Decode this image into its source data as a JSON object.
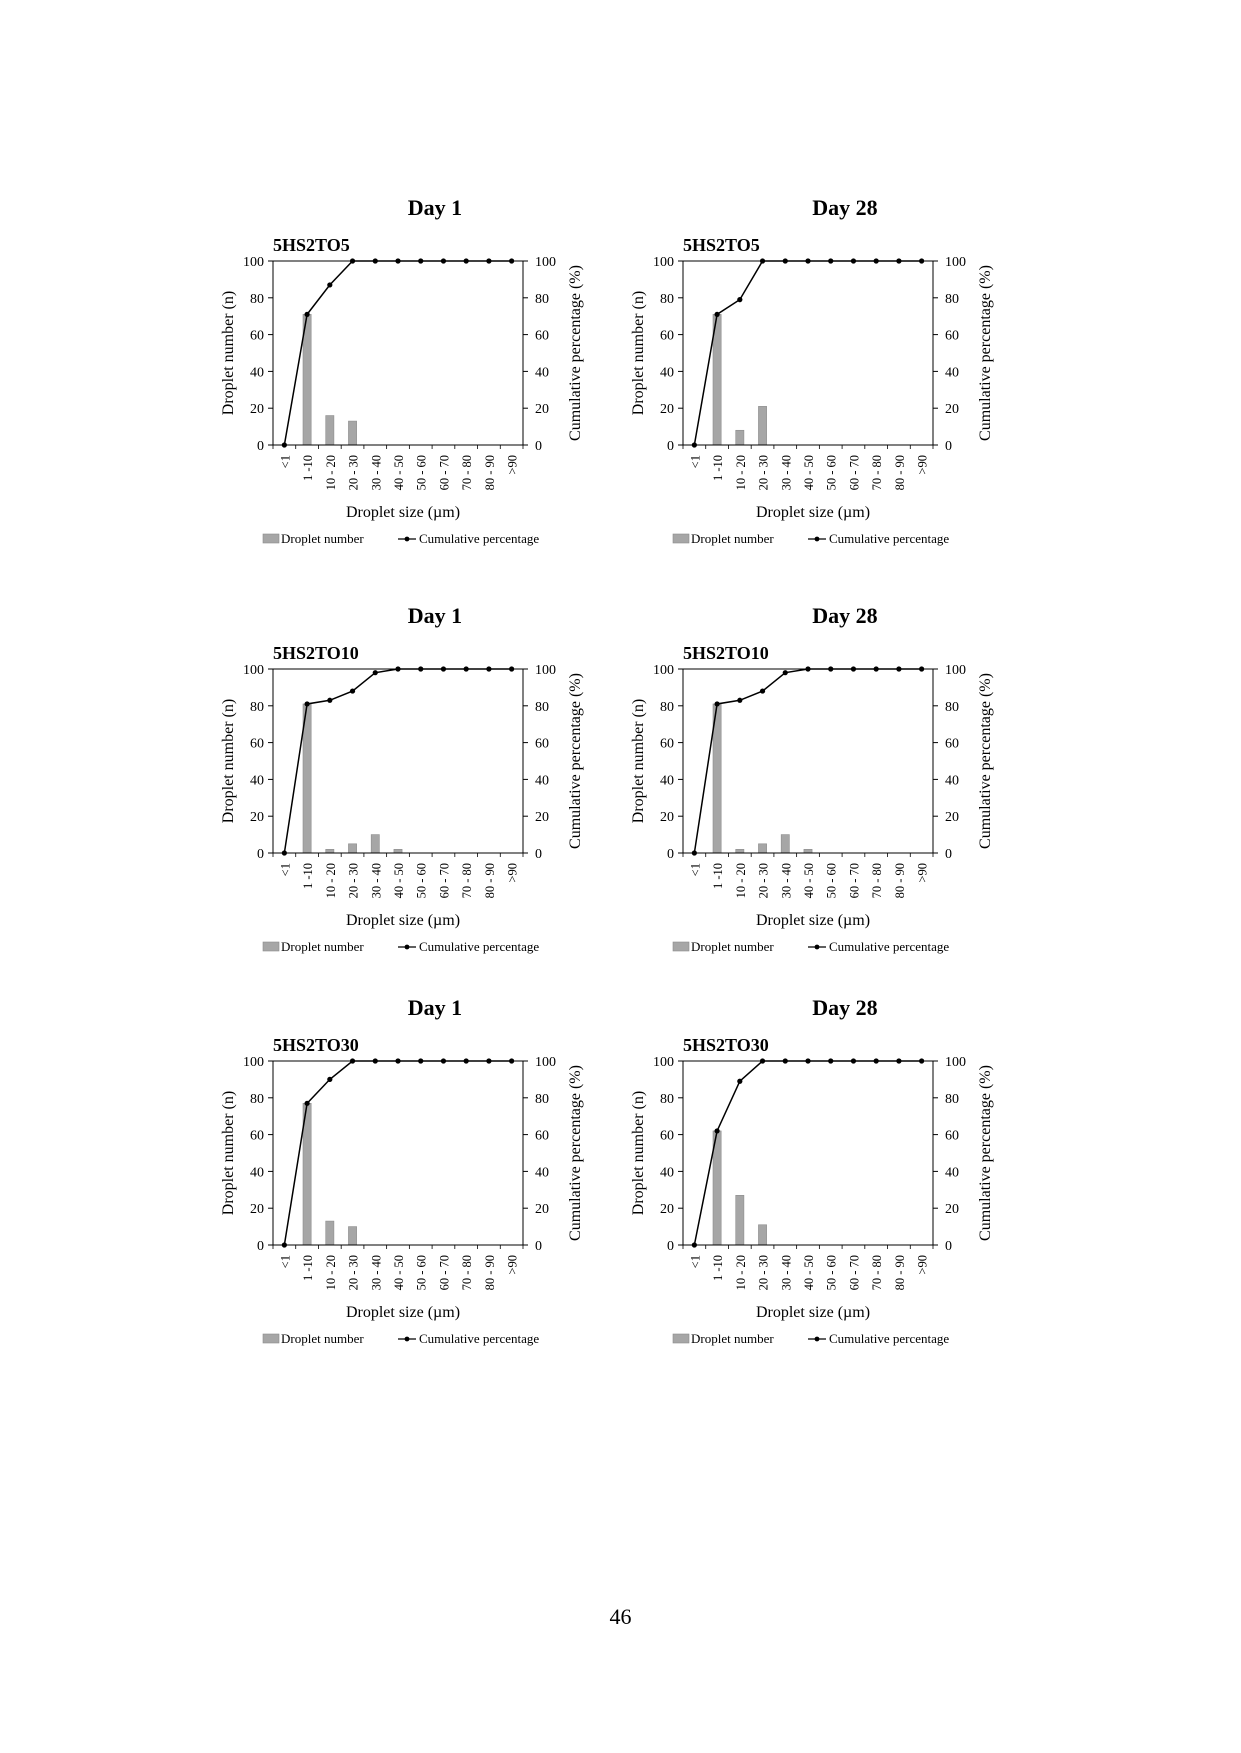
{
  "page_number": "46",
  "legend": {
    "bar_label": "Droplet number",
    "line_label": "Cumulative percentage"
  },
  "chart_data": [
    {
      "type": "bar",
      "day_title": "Day 1",
      "sample": "5HS2TO5",
      "categories": [
        "<1",
        "1 -10",
        "10 - 20",
        "20 - 30",
        "30 - 40",
        "40 - 50",
        "50 - 60",
        "60 - 70",
        "70 - 80",
        "80 - 90",
        ">90"
      ],
      "xlabel": "Droplet size (µm)",
      "ylabel": "Droplet number (n)",
      "y2label": "Cumulative percentage (%)",
      "ylim": [
        0,
        100
      ],
      "y2lim": [
        0,
        100
      ],
      "yticks": [
        0,
        20,
        40,
        60,
        80,
        100
      ],
      "series": [
        {
          "name": "Droplet number",
          "type": "bar",
          "values": [
            0,
            71,
            16,
            13,
            0,
            0,
            0,
            0,
            0,
            0,
            0
          ]
        },
        {
          "name": "Cumulative percentage",
          "type": "line",
          "values": [
            0,
            71,
            87,
            100,
            100,
            100,
            100,
            100,
            100,
            100,
            100
          ]
        }
      ],
      "legend": "bottom"
    },
    {
      "type": "bar",
      "day_title": "Day 28",
      "sample": "5HS2TO5",
      "categories": [
        "<1",
        "1 -10",
        "10 - 20",
        "20 - 30",
        "30 - 40",
        "40 - 50",
        "50 - 60",
        "60 - 70",
        "70 - 80",
        "80 - 90",
        ">90"
      ],
      "xlabel": "Droplet size (µm)",
      "ylabel": "Droplet number (n)",
      "y2label": "Cumulative percentage (%)",
      "ylim": [
        0,
        100
      ],
      "y2lim": [
        0,
        100
      ],
      "yticks": [
        0,
        20,
        40,
        60,
        80,
        100
      ],
      "series": [
        {
          "name": "Droplet number",
          "type": "bar",
          "values": [
            0,
            71,
            8,
            21,
            0,
            0,
            0,
            0,
            0,
            0,
            0
          ]
        },
        {
          "name": "Cumulative percentage",
          "type": "line",
          "values": [
            0,
            71,
            79,
            100,
            100,
            100,
            100,
            100,
            100,
            100,
            100
          ]
        }
      ],
      "legend": "bottom"
    },
    {
      "type": "bar",
      "day_title": "Day 1",
      "sample": "5HS2TO10",
      "categories": [
        "<1",
        "1 -10",
        "10 - 20",
        "20 - 30",
        "30 - 40",
        "40 - 50",
        "50 - 60",
        "60 - 70",
        "70 - 80",
        "80 - 90",
        ">90"
      ],
      "xlabel": "Droplet size (µm)",
      "ylabel": "Droplet number (n)",
      "y2label": "Cumulative percentage (%)",
      "ylim": [
        0,
        100
      ],
      "y2lim": [
        0,
        100
      ],
      "yticks": [
        0,
        20,
        40,
        60,
        80,
        100
      ],
      "series": [
        {
          "name": "Droplet number",
          "type": "bar",
          "values": [
            0,
            81,
            2,
            5,
            10,
            2,
            0,
            0,
            0,
            0,
            0
          ]
        },
        {
          "name": "Cumulative percentage",
          "type": "line",
          "values": [
            0,
            81,
            83,
            88,
            98,
            100,
            100,
            100,
            100,
            100,
            100
          ]
        }
      ],
      "legend": "bottom"
    },
    {
      "type": "bar",
      "day_title": "Day 28",
      "sample": "5HS2TO10",
      "categories": [
        "<1",
        "1 -10",
        "10 - 20",
        "20 - 30",
        "30 - 40",
        "40 - 50",
        "50 - 60",
        "60 - 70",
        "70 - 80",
        "80 - 90",
        ">90"
      ],
      "xlabel": "Droplet size (µm)",
      "ylabel": "Droplet number (n)",
      "y2label": "Cumulative percentage (%)",
      "ylim": [
        0,
        100
      ],
      "y2lim": [
        0,
        100
      ],
      "yticks": [
        0,
        20,
        40,
        60,
        80,
        100
      ],
      "series": [
        {
          "name": "Droplet number",
          "type": "bar",
          "values": [
            0,
            81,
            2,
            5,
            10,
            2,
            0,
            0,
            0,
            0,
            0
          ]
        },
        {
          "name": "Cumulative percentage",
          "type": "line",
          "values": [
            0,
            81,
            83,
            88,
            98,
            100,
            100,
            100,
            100,
            100,
            100
          ]
        }
      ],
      "legend": "bottom"
    },
    {
      "type": "bar",
      "day_title": "Day 1",
      "sample": "5HS2TO30",
      "categories": [
        "<1",
        "1 -10",
        "10 - 20",
        "20 - 30",
        "30 - 40",
        "40 - 50",
        "50 - 60",
        "60 - 70",
        "70 - 80",
        "80 - 90",
        ">90"
      ],
      "xlabel": "Droplet size (µm)",
      "ylabel": "Droplet number (n)",
      "y2label": "Cumulative percentage (%)",
      "ylim": [
        0,
        100
      ],
      "y2lim": [
        0,
        100
      ],
      "yticks": [
        0,
        20,
        40,
        60,
        80,
        100
      ],
      "series": [
        {
          "name": "Droplet number",
          "type": "bar",
          "values": [
            0,
            77,
            13,
            10,
            0,
            0,
            0,
            0,
            0,
            0,
            0
          ]
        },
        {
          "name": "Cumulative percentage",
          "type": "line",
          "values": [
            0,
            77,
            90,
            100,
            100,
            100,
            100,
            100,
            100,
            100,
            100
          ]
        }
      ],
      "legend": "bottom"
    },
    {
      "type": "bar",
      "day_title": "Day 28",
      "sample": "5HS2TO30",
      "categories": [
        "<1",
        "1 -10",
        "10 - 20",
        "20 - 30",
        "30 - 40",
        "40 - 50",
        "50 - 60",
        "60 - 70",
        "70 - 80",
        "80 - 90",
        ">90"
      ],
      "xlabel": "Droplet size (µm)",
      "ylabel": "Droplet number (n)",
      "y2label": "Cumulative percentage (%)",
      "ylim": [
        0,
        100
      ],
      "y2lim": [
        0,
        100
      ],
      "yticks": [
        0,
        20,
        40,
        60,
        80,
        100
      ],
      "series": [
        {
          "name": "Droplet number",
          "type": "bar",
          "values": [
            0,
            62,
            27,
            11,
            0,
            0,
            0,
            0,
            0,
            0,
            0
          ]
        },
        {
          "name": "Cumulative percentage",
          "type": "line",
          "values": [
            0,
            62,
            89,
            100,
            100,
            100,
            100,
            100,
            100,
            100,
            100
          ]
        }
      ],
      "legend": "bottom"
    }
  ]
}
